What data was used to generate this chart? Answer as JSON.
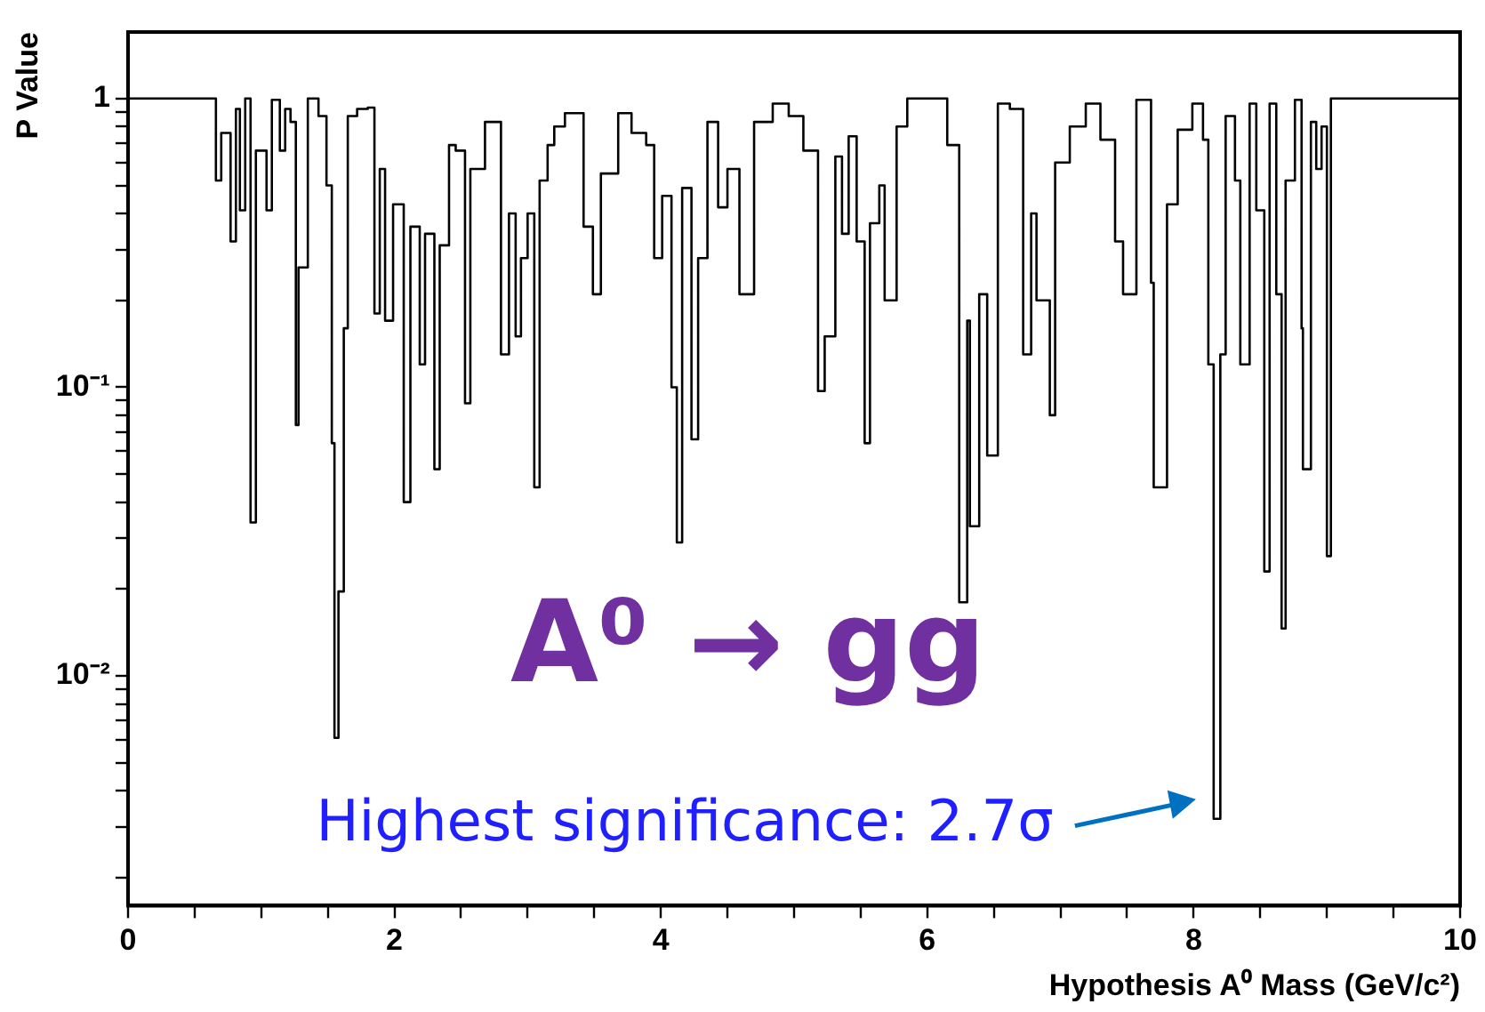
{
  "chart_data": {
    "type": "step",
    "xlabel": "Hypothesis A⁰ Mass (GeV/c²)",
    "ylabel": "P Value",
    "annotations": [
      "A⁰ → gg",
      {
        "text": "Highest significance: 2.7σ",
        "x": 8.15,
        "y": 0.0032
      }
    ],
    "log": "y",
    "grid": false,
    "legend": false,
    "marker": "none",
    "line_style": "solid",
    "xlim": [
      0,
      10
    ],
    "ylim": [
      0.0016,
      1.7
    ],
    "xticks": [
      0,
      {
        "value": 0.5,
        "label": null
      },
      {
        "value": 1,
        "label": null
      },
      {
        "value": 1.5,
        "label": null
      },
      2,
      {
        "value": 2.5,
        "label": null
      },
      {
        "value": 3,
        "label": null
      },
      {
        "value": 3.5,
        "label": null
      },
      4,
      {
        "value": 4.5,
        "label": null
      },
      {
        "value": 5,
        "label": null
      },
      {
        "value": 5.5,
        "label": null
      },
      6,
      {
        "value": 6.5,
        "label": null
      },
      {
        "value": 7,
        "label": null
      },
      {
        "value": 7.5,
        "label": null
      },
      8,
      {
        "value": 8.5,
        "label": null
      },
      {
        "value": 9,
        "label": null
      },
      {
        "value": 9.5,
        "label": null
      },
      10
    ],
    "yticks": [
      {
        "value": 0.002,
        "label": null
      },
      {
        "value": 0.003,
        "label": null
      },
      {
        "value": 0.004,
        "label": null
      },
      {
        "value": 0.005,
        "label": null
      },
      {
        "value": 0.006,
        "label": null
      },
      {
        "value": 0.007,
        "label": null
      },
      {
        "value": 0.008,
        "label": null
      },
      {
        "value": 0.009,
        "label": null
      },
      {
        "value": 0.01,
        "label": "10⁻²"
      },
      {
        "value": 0.02,
        "label": null
      },
      {
        "value": 0.03,
        "label": null
      },
      {
        "value": 0.04,
        "label": null
      },
      {
        "value": 0.05,
        "label": null
      },
      {
        "value": 0.06,
        "label": null
      },
      {
        "value": 0.07,
        "label": null
      },
      {
        "value": 0.08,
        "label": null
      },
      {
        "value": 0.09,
        "label": null
      },
      {
        "value": 0.1,
        "label": "10⁻¹"
      },
      {
        "value": 0.2,
        "label": null
      },
      {
        "value": 0.3,
        "label": null
      },
      {
        "value": 0.4,
        "label": null
      },
      {
        "value": 0.5,
        "label": null
      },
      {
        "value": 0.6,
        "label": null
      },
      {
        "value": 0.7,
        "label": null
      },
      {
        "value": 0.8,
        "label": null
      },
      {
        "value": 0.9,
        "label": null
      },
      1
    ],
    "series": [
      {
        "color": "#000000",
        "x": [
          0,
          0.62,
          0.66,
          0.7,
          0.77,
          0.81,
          0.84,
          0.88,
          0.92,
          0.96,
          1.04,
          1.08,
          1.14,
          1.18,
          1.22,
          1.26,
          1.28,
          1.35,
          1.43,
          1.49,
          1.53,
          1.55,
          1.58,
          1.62,
          1.65,
          1.72,
          1.8,
          1.85,
          1.89,
          1.93,
          1.99,
          2.07,
          2.12,
          2.19,
          2.23,
          2.3,
          2.34,
          2.41,
          2.46,
          2.53,
          2.57,
          2.68,
          2.8,
          2.86,
          2.91,
          2.95,
          3.0,
          3.05,
          3.09,
          3.15,
          3.2,
          3.28,
          3.42,
          3.49,
          3.55,
          3.68,
          3.78,
          3.89,
          3.95,
          4.01,
          4.08,
          4.12,
          4.16,
          4.23,
          4.28,
          4.35,
          4.43,
          4.5,
          4.59,
          4.7,
          4.84,
          4.96,
          5.07,
          5.18,
          5.23,
          5.31,
          5.36,
          5.41,
          5.47,
          5.53,
          5.57,
          5.64,
          5.68,
          5.77,
          5.85,
          6.08,
          6.15,
          6.24,
          6.3,
          6.32,
          6.39,
          6.45,
          6.53,
          6.62,
          6.72,
          6.78,
          6.82,
          6.92,
          6.96,
          7.07,
          7.19,
          7.3,
          7.41,
          7.47,
          7.57,
          7.68,
          7.7,
          7.8,
          7.88,
          7.99,
          8.07,
          8.11,
          8.15,
          8.2,
          8.24,
          8.31,
          8.35,
          8.42,
          8.47,
          8.53,
          8.57,
          8.62,
          8.66,
          8.69,
          8.76,
          8.81,
          8.82,
          8.88,
          8.92,
          8.96,
          9.0,
          9.03,
          10
        ],
        "values": [
          1,
          1,
          0.52,
          0.76,
          0.32,
          0.92,
          0.41,
          1.0,
          0.034,
          0.66,
          0.41,
          0.99,
          0.66,
          0.92,
          0.83,
          0.074,
          0.26,
          1.0,
          0.87,
          0.5,
          0.064,
          0.0061,
          0.0196,
          0.16,
          0.87,
          0.92,
          0.93,
          0.18,
          0.57,
          0.17,
          0.43,
          0.04,
          0.36,
          0.12,
          0.34,
          0.052,
          0.31,
          0.69,
          0.66,
          0.088,
          0.57,
          0.83,
          0.13,
          0.4,
          0.15,
          0.28,
          0.4,
          0.045,
          0.52,
          0.69,
          0.8,
          0.89,
          0.36,
          0.21,
          0.55,
          0.89,
          0.76,
          0.69,
          0.28,
          0.46,
          0.1,
          0.029,
          0.49,
          0.066,
          0.28,
          0.83,
          0.42,
          0.57,
          0.21,
          0.83,
          0.96,
          0.87,
          0.66,
          0.097,
          0.15,
          0.63,
          0.34,
          0.74,
          0.32,
          0.064,
          0.37,
          0.5,
          0.2,
          0.8,
          1.0,
          1.0,
          0.69,
          0.018,
          0.17,
          0.033,
          0.21,
          0.058,
          0.96,
          0.92,
          0.13,
          0.4,
          0.2,
          0.08,
          0.6,
          0.8,
          0.96,
          0.72,
          0.32,
          0.21,
          0.99,
          0.23,
          0.045,
          0.43,
          0.78,
          0.96,
          0.72,
          0.12,
          0.0032,
          0.13,
          0.87,
          0.52,
          0.12,
          0.96,
          0.41,
          0.023,
          0.96,
          0.21,
          0.0146,
          0.52,
          0.99,
          0.16,
          0.052,
          0.83,
          0.57,
          0.8,
          0.026,
          1.0,
          1
        ]
      }
    ]
  }
}
